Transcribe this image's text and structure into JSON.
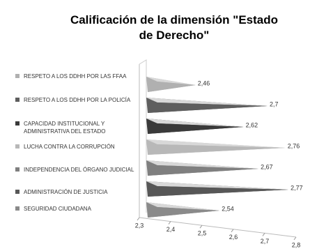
{
  "chart_data": {
    "type": "pyramid-bar",
    "title": "Calificación de la dimensión \"Estado de Derecho\"",
    "categories": [
      "RESPETO A LOS DDHH POR LAS FFAA",
      "RESPETO A LOS DDHH POR LA POLICÍA",
      "CAPACIDAD INSTITUCIONAL Y ADMINISTRATIVA DEL ESTADO",
      "LUCHA CONTRA LA CORRUPCIÓN",
      "INDEPENDENCIA DEL ÓRGANO JUDICIAL",
      "ADMINISTRACIÓN DE JUSTICIA",
      "SEGURIDAD CIUDADANA"
    ],
    "values": [
      2.46,
      2.7,
      2.62,
      2.76,
      2.67,
      2.77,
      2.54
    ],
    "value_labels": [
      "2,46",
      "2,7",
      "2,62",
      "2,76",
      "2,67",
      "2,77",
      "2,54"
    ],
    "colors": [
      "#b0b0b0",
      "#5e5e5e",
      "#3a3a3a",
      "#b8b8b8",
      "#7f7f7f",
      "#575757",
      "#8a8a8a"
    ],
    "xlim": [
      2.3,
      2.8
    ],
    "xticks": [
      {
        "value": 2.3,
        "label": "2,3"
      },
      {
        "value": 2.4,
        "label": "2,4"
      },
      {
        "value": 2.5,
        "label": "2,5"
      },
      {
        "value": 2.6,
        "label": "2,6"
      },
      {
        "value": 2.7,
        "label": "2,7"
      },
      {
        "value": 2.8,
        "label": "2,8"
      }
    ]
  }
}
